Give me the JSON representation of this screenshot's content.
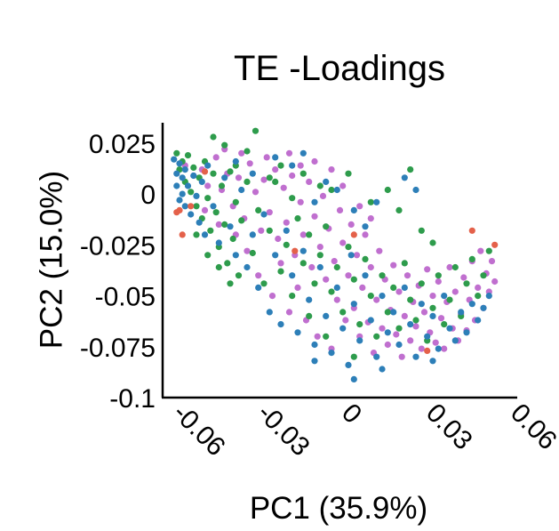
{
  "chart_data": {
    "type": "scatter",
    "title": "TE -Loadings",
    "xlabel": "PC1 (35.9%)",
    "ylabel": "PC2 (15.0%)",
    "xlim": [
      -0.066,
      0.06
    ],
    "ylim": [
      -0.1,
      0.035
    ],
    "xticks": [
      -0.06,
      -0.03,
      0,
      0.03,
      0.06
    ],
    "xtick_labels": [
      "-0.06",
      "-0.03",
      "0",
      "0.03",
      "0.06"
    ],
    "yticks": [
      0.025,
      0,
      -0.025,
      -0.05,
      -0.075,
      -0.1
    ],
    "ytick_labels": [
      "0.025",
      "0",
      "-0.025",
      "-0.05",
      "-0.075",
      "-0.1"
    ],
    "grid": false,
    "legend": "none",
    "series": [
      {
        "color": "#c06fcf",
        "points": [
          [
            -0.058,
            0.014
          ],
          [
            -0.055,
            0.009
          ],
          [
            -0.052,
            0.012
          ],
          [
            -0.05,
            0.004
          ],
          [
            -0.047,
            0.018
          ],
          [
            -0.045,
            0.002
          ],
          [
            -0.043,
            0.01
          ],
          [
            -0.041,
            -0.006
          ],
          [
            -0.039,
            0.008
          ],
          [
            -0.037,
            -0.012
          ],
          [
            -0.035,
            0.015
          ],
          [
            -0.033,
            0.001
          ],
          [
            -0.031,
            -0.018
          ],
          [
            -0.03,
            0.007
          ],
          [
            -0.028,
            -0.009
          ],
          [
            -0.026,
            0.012
          ],
          [
            -0.025,
            -0.022
          ],
          [
            -0.023,
            0.003
          ],
          [
            -0.022,
            -0.014
          ],
          [
            -0.02,
            0.009
          ],
          [
            -0.019,
            -0.03
          ],
          [
            -0.017,
            -0.004
          ],
          [
            -0.016,
            -0.02
          ],
          [
            -0.014,
            0.006
          ],
          [
            -0.013,
            -0.036
          ],
          [
            -0.012,
            -0.011
          ],
          [
            -0.01,
            -0.026
          ],
          [
            -0.009,
            -0.001
          ],
          [
            -0.008,
            -0.042
          ],
          [
            -0.007,
            -0.017
          ],
          [
            -0.005,
            -0.033
          ],
          [
            -0.004,
            -0.052
          ],
          [
            -0.003,
            -0.008
          ],
          [
            -0.002,
            -0.024
          ],
          [
            -0.001,
            -0.062
          ],
          [
            0.0,
            -0.04
          ],
          [
            0.001,
            -0.015
          ],
          [
            0.002,
            -0.056
          ],
          [
            0.003,
            -0.03
          ],
          [
            0.004,
            -0.07
          ],
          [
            0.005,
            -0.046
          ],
          [
            0.006,
            -0.02
          ],
          [
            0.007,
            -0.063
          ],
          [
            0.008,
            -0.036
          ],
          [
            0.009,
            -0.078
          ],
          [
            0.01,
            -0.052
          ],
          [
            0.011,
            -0.028
          ],
          [
            0.012,
            -0.066
          ],
          [
            0.013,
            -0.042
          ],
          [
            0.014,
            -0.074
          ],
          [
            0.015,
            -0.057
          ],
          [
            0.016,
            -0.035
          ],
          [
            0.017,
            -0.069
          ],
          [
            0.018,
            -0.048
          ],
          [
            0.019,
            -0.08
          ],
          [
            0.02,
            -0.06
          ],
          [
            0.021,
            -0.04
          ],
          [
            0.022,
            -0.072
          ],
          [
            0.023,
            -0.053
          ],
          [
            0.024,
            -0.065
          ],
          [
            0.025,
            -0.045
          ],
          [
            0.026,
            -0.076
          ],
          [
            0.027,
            -0.058
          ],
          [
            0.028,
            -0.037
          ],
          [
            0.029,
            -0.068
          ],
          [
            0.03,
            -0.05
          ],
          [
            0.031,
            -0.073
          ],
          [
            0.032,
            -0.043
          ],
          [
            0.033,
            -0.061
          ],
          [
            0.034,
            -0.076
          ],
          [
            0.035,
            -0.053
          ],
          [
            0.036,
            -0.036
          ],
          [
            0.037,
            -0.066
          ],
          [
            0.038,
            -0.048
          ],
          [
            0.039,
            -0.072
          ],
          [
            0.04,
            -0.059
          ],
          [
            0.041,
            -0.041
          ],
          [
            0.042,
            -0.067
          ],
          [
            0.043,
            -0.052
          ],
          [
            0.044,
            -0.033
          ],
          [
            0.045,
            -0.062
          ],
          [
            0.046,
            -0.046
          ],
          [
            0.047,
            -0.028
          ],
          [
            0.048,
            -0.056
          ],
          [
            0.049,
            -0.039
          ],
          [
            0.05,
            -0.048
          ],
          [
            0.051,
            -0.033
          ],
          [
            0.052,
            -0.043
          ],
          [
            -0.032,
            -0.04
          ],
          [
            -0.027,
            -0.05
          ],
          [
            -0.021,
            -0.058
          ],
          [
            -0.015,
            -0.062
          ],
          [
            -0.011,
            -0.07
          ],
          [
            -0.006,
            -0.076
          ],
          [
            -0.018,
            -0.046
          ],
          [
            -0.024,
            -0.034
          ],
          [
            -0.036,
            -0.028
          ],
          [
            -0.04,
            -0.02
          ],
          [
            -0.046,
            -0.015
          ],
          [
            -0.051,
            -0.008
          ],
          [
            -0.012,
            0.016
          ],
          [
            -0.006,
            0.012
          ],
          [
            -0.002,
            0.004
          ],
          [
            0.004,
            -0.006
          ],
          [
            0.008,
            -0.012
          ],
          [
            -0.029,
            0.018
          ],
          [
            -0.021,
            0.02
          ],
          [
            -0.017,
            0.014
          ],
          [
            -0.044,
            0.022
          ],
          [
            -0.038,
            0.02
          ]
        ]
      },
      {
        "color": "#2e9c4c",
        "points": [
          [
            -0.061,
            0.02
          ],
          [
            -0.06,
            0.012
          ],
          [
            -0.059,
            0.016
          ],
          [
            -0.058,
            0.006
          ],
          [
            -0.057,
            0.019
          ],
          [
            -0.056,
            0.001
          ],
          [
            -0.055,
            0.013
          ],
          [
            -0.054,
            -0.006
          ],
          [
            -0.053,
            0.008
          ],
          [
            -0.052,
            -0.012
          ],
          [
            -0.051,
            0.016
          ],
          [
            -0.05,
            -0.002
          ],
          [
            -0.049,
            -0.018
          ],
          [
            -0.048,
            0.01
          ],
          [
            -0.047,
            -0.009
          ],
          [
            -0.046,
            -0.026
          ],
          [
            -0.045,
            0.004
          ],
          [
            -0.044,
            -0.015
          ],
          [
            -0.043,
            -0.034
          ],
          [
            -0.042,
            0.011
          ],
          [
            -0.041,
            -0.022
          ],
          [
            -0.04,
            -0.004
          ],
          [
            -0.039,
            -0.04
          ],
          [
            -0.038,
            -0.013
          ],
          [
            -0.036,
            0.021
          ],
          [
            -0.034,
            -0.029
          ],
          [
            -0.032,
            -0.008
          ],
          [
            -0.03,
            -0.044
          ],
          [
            -0.028,
            -0.018
          ],
          [
            -0.026,
            0.006
          ],
          [
            -0.024,
            -0.038
          ],
          [
            -0.022,
            -0.025
          ],
          [
            -0.02,
            -0.05
          ],
          [
            -0.018,
            -0.012
          ],
          [
            -0.016,
            -0.034
          ],
          [
            -0.014,
            -0.02
          ],
          [
            -0.012,
            -0.044
          ],
          [
            -0.01,
            -0.03
          ],
          [
            -0.008,
            -0.016
          ],
          [
            -0.006,
            -0.048
          ],
          [
            -0.004,
            -0.036
          ],
          [
            -0.002,
            -0.058
          ],
          [
            0.0,
            -0.026
          ],
          [
            0.002,
            -0.042
          ],
          [
            0.004,
            -0.064
          ],
          [
            0.006,
            -0.032
          ],
          [
            0.008,
            -0.05
          ],
          [
            0.01,
            -0.07
          ],
          [
            0.012,
            -0.04
          ],
          [
            0.014,
            -0.058
          ],
          [
            0.016,
            -0.046
          ],
          [
            0.018,
            -0.066
          ],
          [
            0.02,
            -0.034
          ],
          [
            0.022,
            -0.052
          ],
          [
            0.024,
            -0.062
          ],
          [
            0.026,
            -0.044
          ],
          [
            0.028,
            -0.072
          ],
          [
            0.03,
            -0.056
          ],
          [
            0.032,
            -0.04
          ],
          [
            0.034,
            -0.064
          ],
          [
            0.036,
            -0.052
          ],
          [
            0.038,
            -0.036
          ],
          [
            0.04,
            -0.06
          ],
          [
            0.042,
            -0.044
          ],
          [
            0.044,
            -0.032
          ],
          [
            0.046,
            -0.05
          ],
          [
            0.048,
            -0.04
          ],
          [
            0.05,
            -0.028
          ],
          [
            -0.044,
            0.024
          ],
          [
            -0.04,
            0.014
          ],
          [
            -0.036,
            0.006
          ],
          [
            -0.033,
            0.031
          ],
          [
            -0.048,
            0.028
          ],
          [
            -0.054,
            -0.02
          ],
          [
            -0.05,
            -0.03
          ],
          [
            -0.046,
            -0.036
          ],
          [
            -0.042,
            -0.044
          ],
          [
            -0.028,
            0.008
          ],
          [
            -0.024,
            0.014
          ],
          [
            -0.02,
            -0.002
          ],
          [
            -0.016,
            0.01
          ],
          [
            -0.01,
            0.004
          ],
          [
            0.0,
            0.01
          ],
          [
            0.008,
            -0.004
          ],
          [
            0.014,
            0.002
          ],
          [
            0.018,
            -0.008
          ],
          [
            0.022,
            0.012
          ],
          [
            0.026,
            -0.018
          ],
          [
            0.03,
            -0.024
          ],
          [
            -0.006,
            0.002
          ],
          [
            -0.014,
            -0.06
          ],
          [
            -0.008,
            -0.07
          ],
          [
            0.002,
            -0.08
          ]
        ]
      },
      {
        "color": "#2d7fb8",
        "points": [
          [
            -0.062,
            0.017
          ],
          [
            -0.061,
            0.01
          ],
          [
            -0.061,
            0.004
          ],
          [
            -0.06,
            0.015
          ],
          [
            -0.06,
            -0.003
          ],
          [
            -0.059,
            0.008
          ],
          [
            -0.059,
            0.0
          ],
          [
            -0.058,
            0.012
          ],
          [
            -0.058,
            -0.006
          ],
          [
            -0.057,
            0.004
          ],
          [
            -0.056,
            -0.01
          ],
          [
            -0.055,
            0.009
          ],
          [
            -0.054,
            -0.001
          ],
          [
            -0.053,
            -0.014
          ],
          [
            -0.052,
            0.006
          ],
          [
            -0.051,
            -0.02
          ],
          [
            -0.05,
            0.014
          ],
          [
            -0.048,
            -0.006
          ],
          [
            -0.046,
            -0.024
          ],
          [
            -0.044,
            0.008
          ],
          [
            -0.042,
            -0.016
          ],
          [
            -0.04,
            -0.03
          ],
          [
            -0.038,
            0.002
          ],
          [
            -0.036,
            -0.036
          ],
          [
            -0.034,
            -0.02
          ],
          [
            -0.032,
            -0.046
          ],
          [
            -0.03,
            -0.01
          ],
          [
            -0.028,
            -0.058
          ],
          [
            -0.026,
            -0.03
          ],
          [
            -0.024,
            -0.064
          ],
          [
            -0.022,
            -0.018
          ],
          [
            -0.02,
            -0.04
          ],
          [
            -0.018,
            -0.068
          ],
          [
            -0.016,
            -0.028
          ],
          [
            -0.014,
            -0.052
          ],
          [
            -0.012,
            -0.074
          ],
          [
            -0.01,
            -0.036
          ],
          [
            -0.008,
            -0.06
          ],
          [
            -0.006,
            -0.078
          ],
          [
            -0.004,
            -0.046
          ],
          [
            -0.002,
            -0.066
          ],
          [
            0.0,
            -0.084
          ],
          [
            0.001,
            -0.03
          ],
          [
            0.002,
            -0.054
          ],
          [
            0.004,
            -0.072
          ],
          [
            0.006,
            -0.04
          ],
          [
            0.008,
            -0.062
          ],
          [
            0.01,
            -0.08
          ],
          [
            0.012,
            -0.05
          ],
          [
            0.014,
            -0.068
          ],
          [
            0.016,
            -0.058
          ],
          [
            0.018,
            -0.074
          ],
          [
            0.02,
            -0.046
          ],
          [
            0.022,
            -0.064
          ],
          [
            0.024,
            -0.08
          ],
          [
            0.026,
            -0.054
          ],
          [
            0.028,
            -0.07
          ],
          [
            0.03,
            -0.06
          ],
          [
            0.032,
            -0.076
          ],
          [
            0.034,
            -0.05
          ],
          [
            0.036,
            -0.066
          ],
          [
            0.038,
            -0.072
          ],
          [
            0.04,
            -0.058
          ],
          [
            0.042,
            -0.068
          ],
          [
            0.044,
            -0.054
          ],
          [
            0.046,
            -0.062
          ],
          [
            0.048,
            -0.056
          ],
          [
            0.05,
            -0.05
          ],
          [
            -0.02,
            0.014
          ],
          [
            -0.016,
            0.02
          ],
          [
            -0.012,
            -0.004
          ],
          [
            -0.008,
            0.006
          ],
          [
            -0.004,
            0.002
          ],
          [
            0.002,
            -0.008
          ],
          [
            0.006,
            -0.016
          ],
          [
            0.01,
            -0.004
          ],
          [
            0.02,
            0.008
          ],
          [
            0.024,
            0.002
          ],
          [
            -0.026,
            0.018
          ],
          [
            -0.034,
            0.01
          ],
          [
            -0.04,
            0.016
          ],
          [
            0.002,
            -0.091
          ],
          [
            0.012,
            -0.086
          ],
          [
            -0.012,
            -0.082
          ],
          [
            0.03,
            -0.082
          ]
        ]
      },
      {
        "color": "#e4614a",
        "points": [
          [
            -0.061,
            -0.009
          ],
          [
            -0.06,
            -0.008
          ],
          [
            -0.059,
            -0.02
          ],
          [
            -0.056,
            -0.006
          ],
          [
            -0.051,
            0.011
          ],
          [
            -0.019,
            -0.028
          ],
          [
            0.002,
            -0.02
          ],
          [
            0.028,
            -0.077
          ],
          [
            0.044,
            -0.018
          ],
          [
            0.052,
            -0.025
          ]
        ]
      }
    ]
  }
}
